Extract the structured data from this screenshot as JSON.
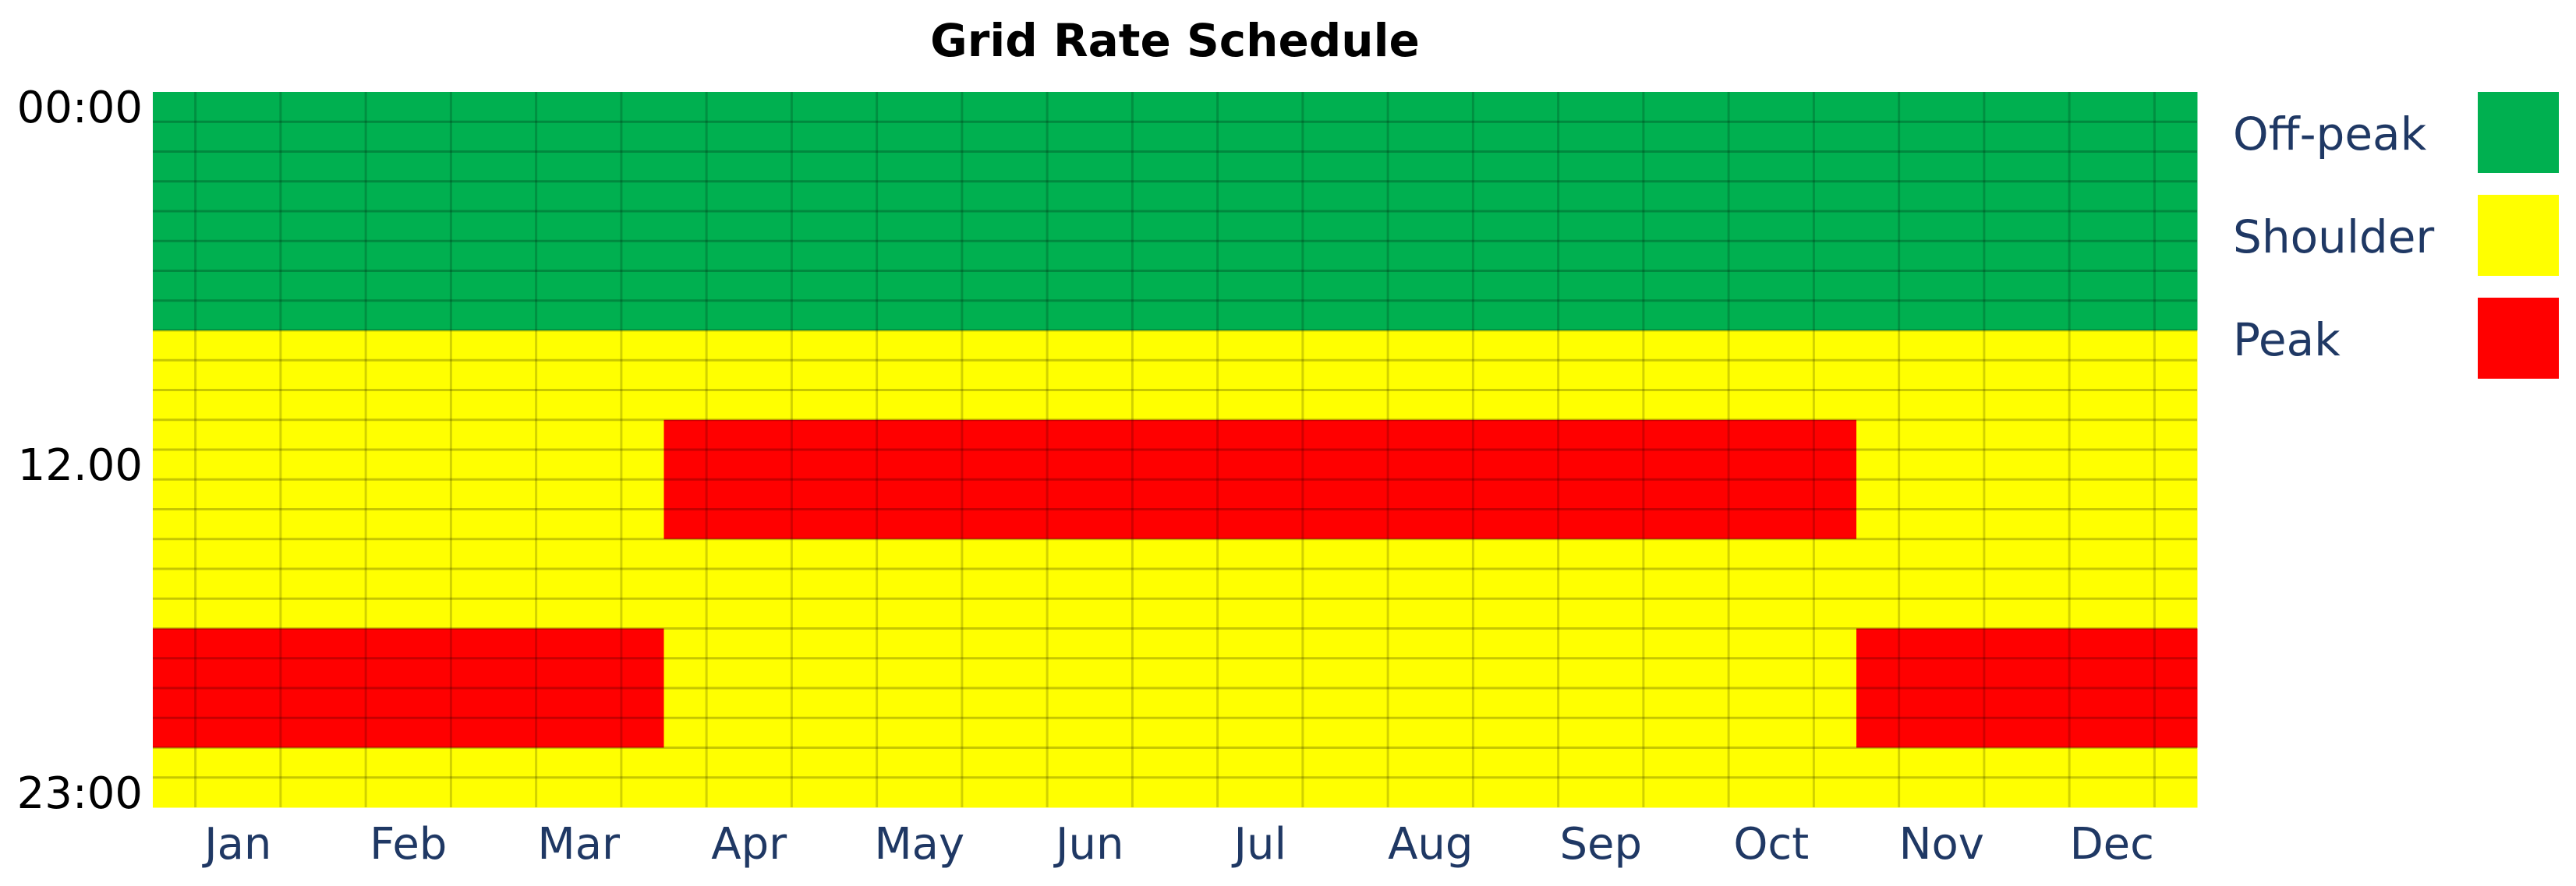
{
  "chart_data": {
    "type": "heatmap",
    "title": "Grid Rate Schedule",
    "xlabel": "",
    "ylabel": "",
    "months": [
      "Jan",
      "Feb",
      "Mar",
      "Apr",
      "May",
      "Jun",
      "Jul",
      "Aug",
      "Sep",
      "Oct",
      "Nov",
      "Dec"
    ],
    "hours_range": [
      0,
      23
    ],
    "y_tick_labels": [
      {
        "hour": 0,
        "label": "00:00"
      },
      {
        "hour": 12,
        "label": "12.00"
      },
      {
        "hour": 23,
        "label": "23:00"
      }
    ],
    "rates": [
      {
        "name": "Off-peak",
        "color": "#00B050"
      },
      {
        "name": "Shoulder",
        "color": "#FFFF00"
      },
      {
        "name": "Peak",
        "color": "#FF0000"
      }
    ],
    "schedule": [
      {
        "months": [
          "Jan",
          "Feb",
          "Mar",
          "Nov",
          "Dec"
        ],
        "off_peak_hours": [
          0,
          7
        ],
        "shoulder_hours": [
          8,
          17
        ],
        "peak_hours": [
          18,
          21
        ],
        "shoulder_after": [
          22,
          23
        ]
      },
      {
        "months": [
          "Apr",
          "May",
          "Jun",
          "Jul",
          "Aug",
          "Sep",
          "Oct"
        ],
        "off_peak_hours": [
          0,
          7
        ],
        "shoulder_hours": [
          8,
          10
        ],
        "peak_hours": [
          11,
          14
        ],
        "shoulder_after": [
          15,
          23
        ]
      }
    ],
    "legend_position": "right",
    "grid": true
  }
}
